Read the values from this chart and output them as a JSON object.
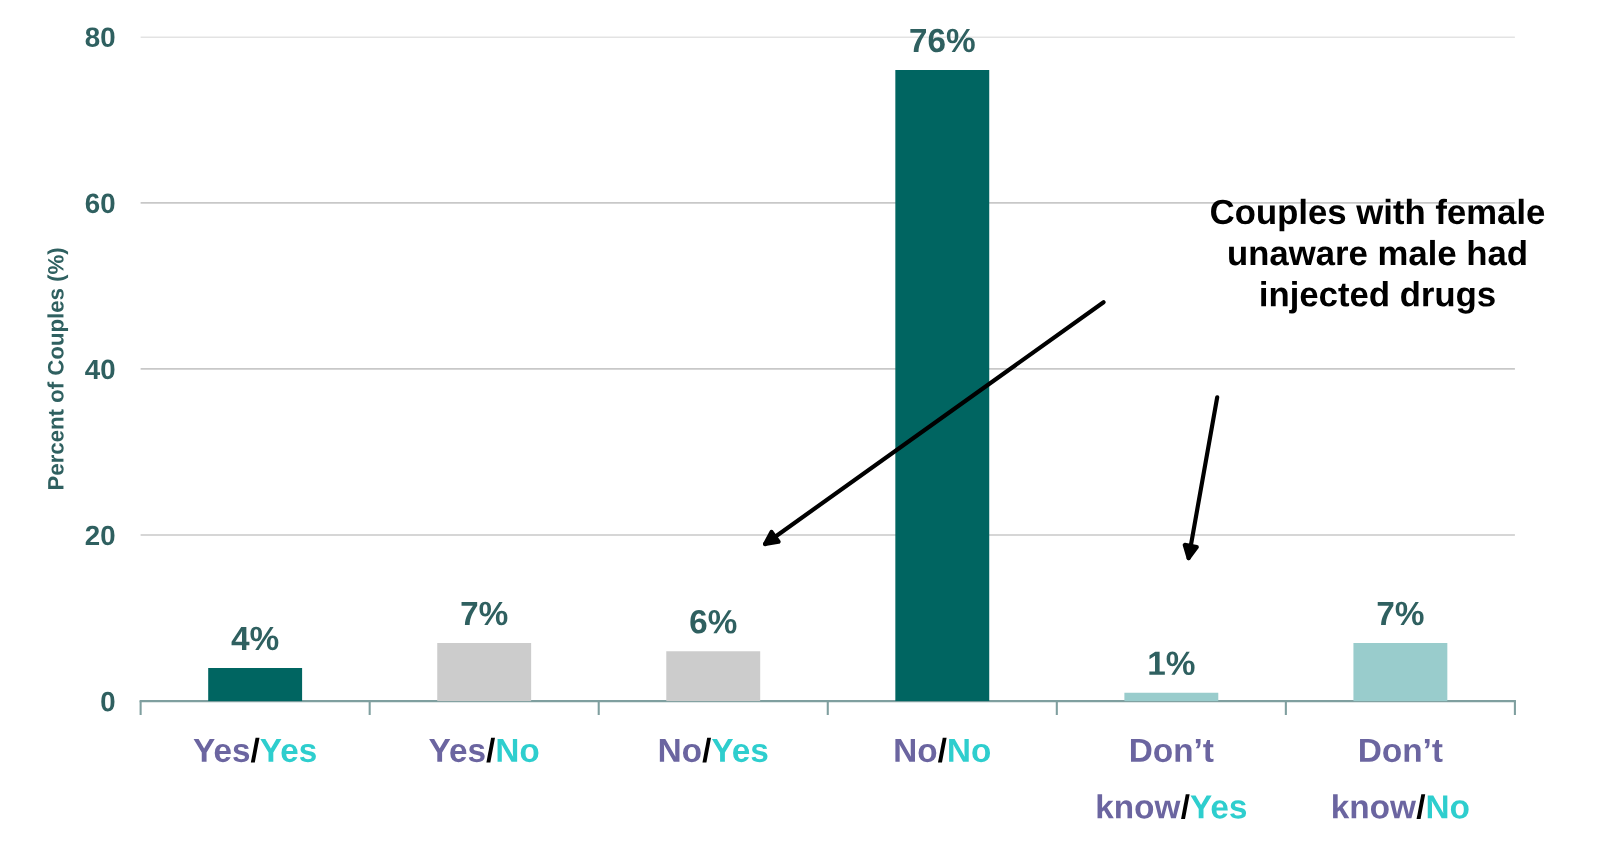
{
  "chart_data": {
    "type": "bar",
    "ylabel": "Percent of Couples (%)",
    "categories": [
      "Yes/Yes",
      "Yes/No",
      "No/Yes",
      "No/No",
      "Don’t know/Yes",
      "Don’t know/No"
    ],
    "values": [
      4,
      7,
      6,
      76,
      1,
      7
    ],
    "colors": [
      "#006561",
      "#cccccc",
      "#cccccc",
      "#006561",
      "#99cccc",
      "#99cccc"
    ],
    "value_labels": [
      "4%",
      "7%",
      "6%",
      "76%",
      "1%",
      "7%"
    ],
    "ylim": [
      0,
      80
    ],
    "yticks": [
      0,
      20,
      40,
      60,
      80
    ],
    "grid": "y",
    "annotations": [
      "Couples with female unaware male had injected drugs"
    ]
  }
}
